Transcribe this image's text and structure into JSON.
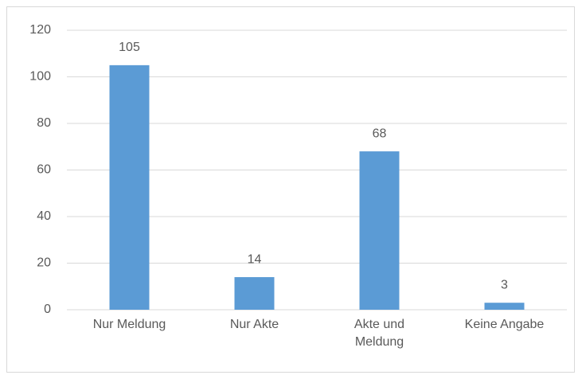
{
  "chart_data": {
    "type": "bar",
    "categories": [
      "Nur Meldung",
      "Nur Akte",
      "Akte und Meldung",
      "Keine Angabe"
    ],
    "values": [
      105,
      14,
      68,
      3
    ],
    "color": "#5b9bd5",
    "ylim": [
      0,
      120
    ],
    "yticks": [
      0,
      20,
      40,
      60,
      80,
      100,
      120
    ],
    "grid": true
  }
}
